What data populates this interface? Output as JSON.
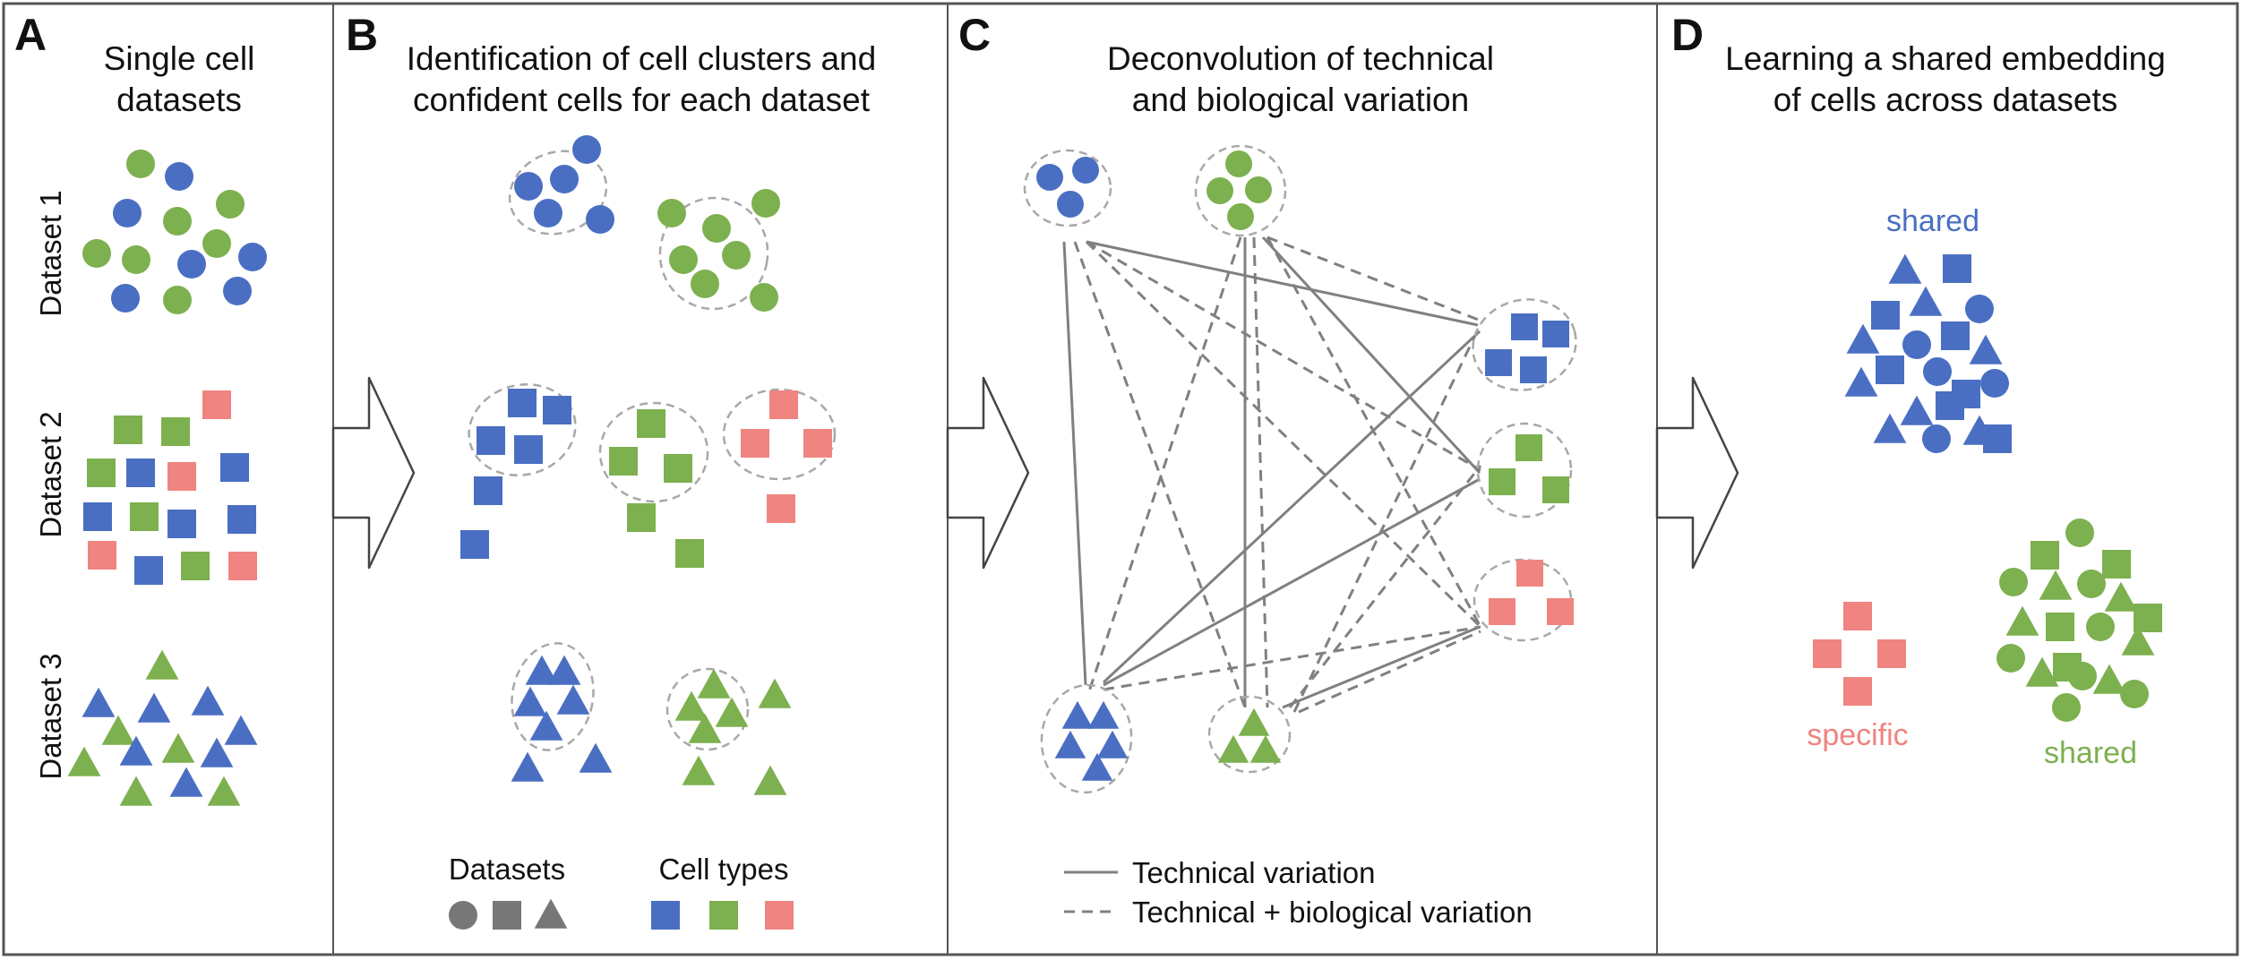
{
  "colors": {
    "blue": "#4a6fc2",
    "green": "#7db04f",
    "red": "#ef8480",
    "gray": "#777777",
    "line": "#808080",
    "dashed": "#a8a8a8"
  },
  "panels": {
    "a": {
      "letter": "A",
      "title_lines": [
        "Single cell",
        "datasets"
      ],
      "dataset_labels": [
        "Dataset 1",
        "Dataset 2",
        "Dataset 3"
      ]
    },
    "b": {
      "letter": "B",
      "title_lines": [
        "Identification of cell clusters and",
        "confident cells for each dataset"
      ],
      "legend": {
        "datasets_label": "Datasets",
        "cell_types_label": "Cell types",
        "dataset_shapes": [
          "circle",
          "square",
          "triangle"
        ],
        "cell_type_colors": [
          "blue",
          "green",
          "red"
        ]
      }
    },
    "c": {
      "letter": "C",
      "title_lines": [
        "Deconvolution of technical",
        "and biological variation"
      ],
      "legend": {
        "solid_label": "Technical variation",
        "dashed_label": "Technical + biological variation"
      }
    },
    "d": {
      "letter": "D",
      "title_lines": [
        "Learning a shared embedding",
        "of cells across datasets"
      ],
      "labels": {
        "blue_cluster": "shared",
        "red_cluster": "specific",
        "green_cluster": "shared"
      }
    }
  }
}
